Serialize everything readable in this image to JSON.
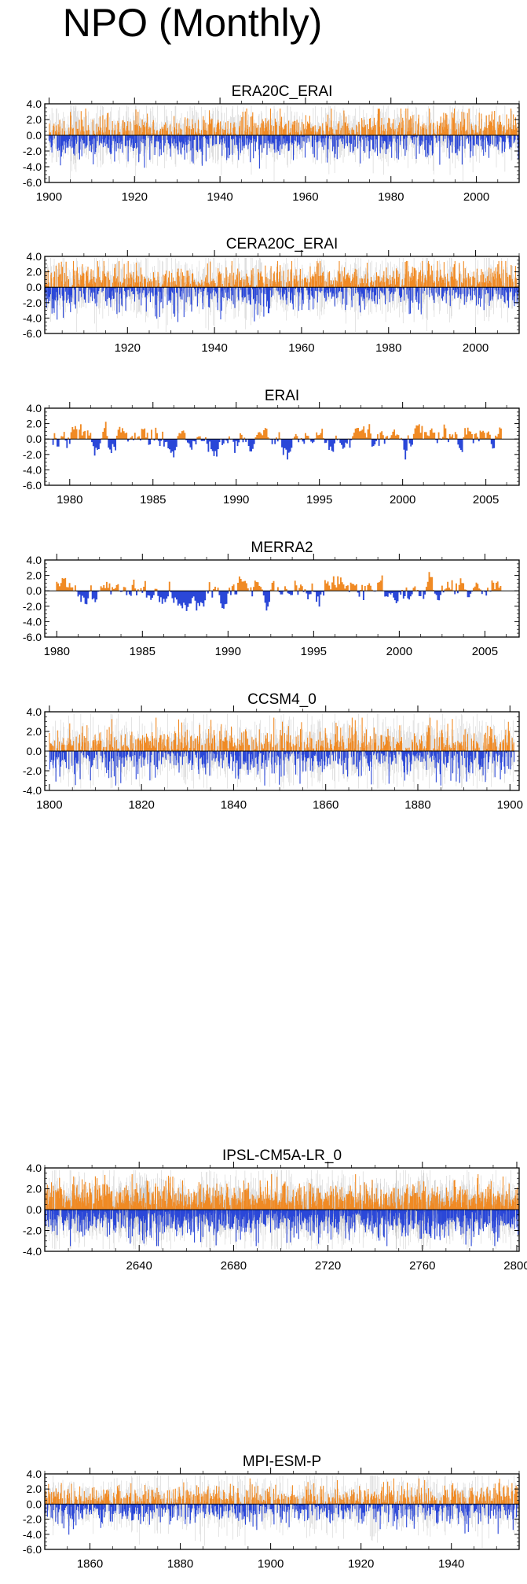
{
  "figure": {
    "title": "NPO (Monthly)"
  },
  "colors": {
    "positive": "#f08a24",
    "negative": "#2a47d8",
    "ensemble": "#c8c8c8",
    "axis": "#000000"
  },
  "chart_data": [
    {
      "type": "bar",
      "title": "ERA20C_ERAI",
      "xlim": [
        1899,
        2010
      ],
      "ylim": [
        -6,
        4
      ],
      "yticks": [
        "4.0",
        "2.0",
        "0.0",
        "-2.0",
        "-4.0",
        "-6.0"
      ],
      "yvals": [
        4,
        2,
        0,
        -2,
        -4,
        -6
      ],
      "xticks": [
        1900,
        1920,
        1940,
        1960,
        1980,
        2000
      ],
      "xticklabels": [
        "1900",
        "1920",
        "1940",
        "1960",
        "1980",
        "2000"
      ],
      "start": 1900,
      "end": 2010,
      "amp": 1.4,
      "shade": true,
      "seed": 11,
      "smooth": false,
      "trend": 0.6
    },
    {
      "type": "bar",
      "title": "CERA20C_ERAI",
      "xlim": [
        1901,
        2010
      ],
      "ylim": [
        -6,
        4
      ],
      "yticks": [
        "4.0",
        "2.0",
        "0.0",
        "-2.0",
        "-4.0",
        "-6.0"
      ],
      "yvals": [
        4,
        2,
        0,
        -2,
        -4,
        -6
      ],
      "xticks": [
        1920,
        1940,
        1960,
        1980,
        2000
      ],
      "xticklabels": [
        "1920",
        "1940",
        "1960",
        "1980",
        "2000"
      ],
      "start": 1901,
      "end": 2010,
      "amp": 1.5,
      "shade": true,
      "seed": 23,
      "smooth": false,
      "trend": 0.3
    },
    {
      "type": "bar",
      "title": "ERAI",
      "xlim": [
        1978.5,
        2007
      ],
      "ylim": [
        -6,
        4
      ],
      "yticks": [
        "4.0",
        "2.0",
        "0.0",
        "-2.0",
        "-4.0",
        "-6.0"
      ],
      "yvals": [
        4,
        2,
        0,
        -2,
        -4,
        -6
      ],
      "xticks": [
        1980,
        1985,
        1990,
        1995,
        2000,
        2005
      ],
      "xticklabels": [
        "1980",
        "1985",
        "1990",
        "1995",
        "2000",
        "2005"
      ],
      "start": 1979,
      "end": 2006,
      "amp": 1.4,
      "shade": false,
      "seed": 37,
      "smooth": true,
      "trend": 0
    },
    {
      "type": "bar",
      "title": "MERRA2",
      "xlim": [
        1979.3,
        2007
      ],
      "ylim": [
        -6,
        4
      ],
      "yticks": [
        "4.0",
        "2.0",
        "0.0",
        "-2.0",
        "-4.0",
        "-6.0"
      ],
      "yvals": [
        4,
        2,
        0,
        -2,
        -4,
        -6
      ],
      "xticks": [
        1980,
        1985,
        1990,
        1995,
        2000,
        2005
      ],
      "xticklabels": [
        "1980",
        "1985",
        "1990",
        "1995",
        "2000",
        "2005"
      ],
      "start": 1980,
      "end": 2006,
      "amp": 1.4,
      "shade": false,
      "seed": 41,
      "smooth": true,
      "trend": 0
    },
    {
      "type": "bar",
      "title": "CCSM4_0",
      "xlim": [
        1799,
        1902
      ],
      "ylim": [
        -4,
        4
      ],
      "yticks": [
        "4.0",
        "2.0",
        "0.0",
        "-2.0",
        "-4.0"
      ],
      "yvals": [
        4,
        2,
        0,
        -2,
        -4
      ],
      "xticks": [
        1800,
        1820,
        1840,
        1860,
        1880,
        1900
      ],
      "xticklabels": [
        "1800",
        "1820",
        "1840",
        "1860",
        "1880",
        "1900"
      ],
      "start": 1800,
      "end": 1901,
      "amp": 1.3,
      "shade": true,
      "seed": 53,
      "smooth": false,
      "trend": 0
    },
    {
      "type": "bar",
      "title": "IPSL-CM5A-LR_0",
      "xlim": [
        2600,
        2801
      ],
      "ylim": [
        -4,
        4
      ],
      "yticks": [
        "4.0",
        "2.0",
        "0.0",
        "-2.0",
        "-4.0"
      ],
      "yvals": [
        4,
        2,
        0,
        -2,
        -4
      ],
      "xticks": [
        2640,
        2680,
        2720,
        2760,
        2800
      ],
      "xticklabels": [
        "2640",
        "2680",
        "2720",
        "2760",
        "2800"
      ],
      "start": 2600,
      "end": 2801,
      "amp": 1.2,
      "shade": true,
      "seed": 67,
      "smooth": false,
      "trend": 0
    },
    {
      "type": "bar",
      "title": "MPI-ESM-P",
      "xlim": [
        1850,
        1955
      ],
      "ylim": [
        -6,
        4
      ],
      "yticks": [
        "4.0",
        "2.0",
        "0.0",
        "-2.0",
        "-4.0",
        "-6.0"
      ],
      "yvals": [
        4,
        2,
        0,
        -2,
        -4,
        -6
      ],
      "xticks": [
        1860,
        1880,
        1900,
        1920,
        1940
      ],
      "xticklabels": [
        "1860",
        "1880",
        "1900",
        "1920",
        "1940"
      ],
      "start": 1850,
      "end": 1955,
      "amp": 1.3,
      "shade": true,
      "seed": 79,
      "smooth": false,
      "trend": 0
    }
  ]
}
